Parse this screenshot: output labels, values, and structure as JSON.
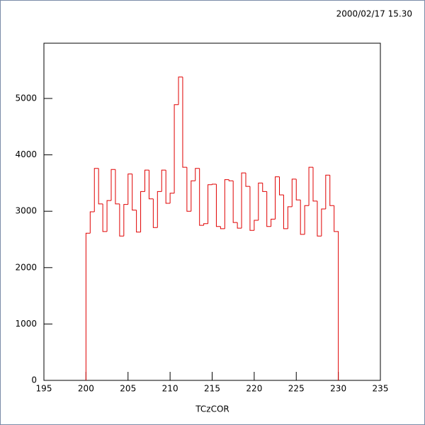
{
  "chart_data": {
    "type": "histogram",
    "subtitle": "2000/02/17  15.30",
    "x_label": "TCzCOR",
    "bins": [
      200,
      200.5,
      201,
      201.5,
      202,
      202.5,
      203,
      203.5,
      204,
      204.5,
      205,
      205.5,
      206,
      206.5,
      207,
      207.5,
      208,
      208.5,
      209,
      209.5,
      210,
      210.5,
      211,
      211.5,
      212,
      212.5,
      213,
      213.5,
      214,
      214.5,
      215,
      215.5,
      216,
      216.5,
      217,
      217.5,
      218,
      218.5,
      219,
      219.5,
      220,
      220.5,
      221,
      221.5,
      222,
      222.5,
      223,
      223.5,
      224,
      224.5,
      225,
      225.5,
      226,
      226.5,
      227,
      227.5,
      228,
      228.5,
      229,
      229.5,
      230
    ],
    "values": [
      2610,
      2990,
      3760,
      3130,
      2640,
      3190,
      3740,
      3130,
      2560,
      3120,
      3660,
      3020,
      2630,
      3350,
      3730,
      3220,
      2710,
      3350,
      3730,
      3140,
      3320,
      4890,
      5380,
      3780,
      3000,
      3540,
      3760,
      2750,
      2780,
      3470,
      3480,
      2730,
      2690,
      3560,
      3540,
      2800,
      2700,
      3680,
      3440,
      2660,
      2840,
      3500,
      3350,
      2730,
      2860,
      3610,
      3290,
      2690,
      3080,
      3570,
      3200,
      2590,
      3100,
      3780,
      3180,
      2560,
      3040,
      3640,
      3100,
      2640
    ],
    "color": "#e00000",
    "xlim": [
      195,
      235
    ],
    "xticks": [
      195,
      200,
      205,
      210,
      215,
      220,
      225,
      230,
      235
    ],
    "ylim": [
      0,
      5980
    ],
    "yticks": [
      0,
      1000,
      2000,
      3000,
      4000,
      5000
    ]
  }
}
